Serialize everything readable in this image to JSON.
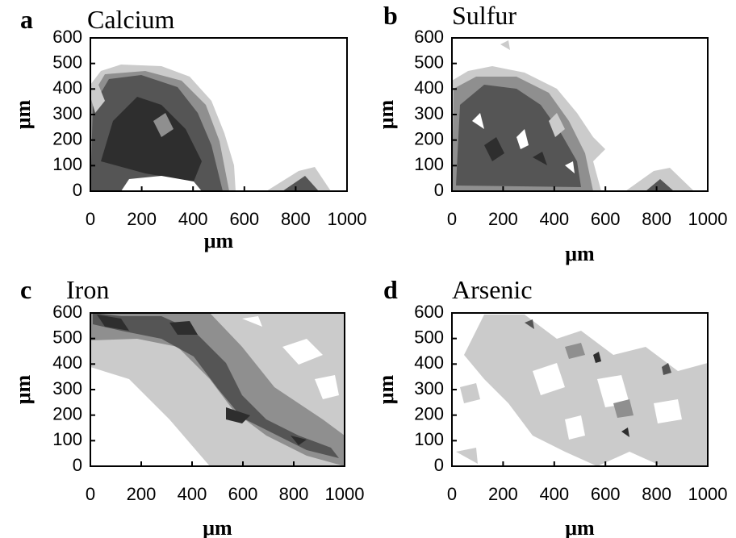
{
  "chart_data": [
    {
      "type": "contour",
      "label": "a",
      "title": "Calcium",
      "x_label": "μm",
      "y_label": "μm",
      "xlim": [
        0,
        1000
      ],
      "ylim": [
        0,
        600
      ],
      "xticks": [
        0,
        200,
        400,
        600,
        800,
        1000
      ],
      "yticks": [
        0,
        100,
        200,
        300,
        400,
        500,
        600
      ]
    },
    {
      "type": "contour",
      "label": "b",
      "title": "Sulfur",
      "x_label": "μm",
      "y_label": "μm",
      "xlim": [
        0,
        1000
      ],
      "ylim": [
        0,
        600
      ],
      "xticks": [
        0,
        200,
        400,
        600,
        800,
        1000
      ],
      "yticks": [
        0,
        100,
        200,
        300,
        400,
        500,
        600
      ]
    },
    {
      "type": "contour",
      "label": "c",
      "title": "Iron",
      "x_label": "μm",
      "y_label": "μm",
      "xlim": [
        0,
        1000
      ],
      "ylim": [
        0,
        600
      ],
      "xticks": [
        0,
        200,
        400,
        600,
        800,
        1000
      ],
      "yticks": [
        0,
        100,
        200,
        300,
        400,
        500,
        600
      ]
    },
    {
      "type": "contour",
      "label": "d",
      "title": "Arsenic",
      "x_label": "μm",
      "y_label": "μm",
      "xlim": [
        0,
        1000
      ],
      "ylim": [
        0,
        600
      ],
      "xticks": [
        0,
        200,
        400,
        600,
        800,
        1000
      ],
      "yticks": [
        0,
        100,
        200,
        300,
        400,
        500,
        600
      ]
    }
  ]
}
